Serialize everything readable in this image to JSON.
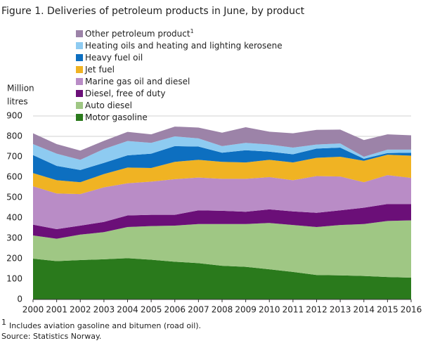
{
  "chart_data": {
    "type": "stacked_area",
    "title": "Figure 1. Deliveries of petroleum products in June, by product",
    "y_label": [
      "Million",
      "litres"
    ],
    "categories": [
      "2000",
      "2001",
      "2002",
      "2003",
      "2004",
      "2005",
      "2006",
      "2007",
      "2008",
      "2009",
      "2010",
      "2011",
      "2012",
      "2013",
      "2014",
      "2015",
      "2016"
    ],
    "series": [
      {
        "name": "Motor gasoline",
        "color": "#2a7a1c",
        "values": [
          200,
          188,
          193,
          197,
          202,
          195,
          185,
          178,
          165,
          160,
          148,
          135,
          120,
          118,
          115,
          110,
          107
        ]
      },
      {
        "name": "Auto diesel",
        "color": "#9fc784",
        "values": [
          114,
          110,
          125,
          133,
          153,
          165,
          177,
          192,
          205,
          210,
          227,
          230,
          235,
          247,
          255,
          275,
          281
        ]
      },
      {
        "name": "Diesel, free of duty",
        "color": "#6b0f78",
        "values": [
          53,
          47,
          44,
          50,
          57,
          55,
          53,
          67,
          65,
          60,
          67,
          67,
          70,
          72,
          80,
          83,
          80
        ]
      },
      {
        "name": "Marine gas oil and diesel",
        "color": "#b98cc6",
        "values": [
          188,
          175,
          155,
          170,
          158,
          163,
          175,
          161,
          157,
          162,
          158,
          153,
          180,
          166,
          125,
          142,
          128
        ]
      },
      {
        "name": "Jet fuel",
        "color": "#f0b323",
        "values": [
          65,
          65,
          58,
          65,
          77,
          67,
          85,
          87,
          83,
          80,
          85,
          87,
          90,
          97,
          105,
          100,
          109
        ]
      },
      {
        "name": "Heavy fuel oil",
        "color": "#0d6fc0",
        "values": [
          88,
          70,
          60,
          55,
          60,
          70,
          77,
          65,
          45,
          60,
          40,
          40,
          45,
          45,
          10,
          8,
          15
        ]
      },
      {
        "name": "Heating oils and heating and lighting kerosene",
        "color": "#8ecbf1",
        "values": [
          54,
          60,
          50,
          68,
          70,
          53,
          48,
          40,
          32,
          36,
          35,
          33,
          20,
          20,
          10,
          17,
          15
        ]
      },
      {
        "name": "Other petroleum product",
        "superscript": "1",
        "color": "#9c83a8",
        "values": [
          53,
          47,
          45,
          40,
          45,
          42,
          48,
          53,
          66,
          77,
          63,
          70,
          72,
          68,
          82,
          75,
          70
        ]
      }
    ],
    "ylim": [
      0,
      900
    ],
    "yticks": [
      0,
      100,
      200,
      300,
      400,
      500,
      600,
      700,
      800,
      900
    ],
    "grid": true,
    "footnote_marker": "1",
    "footnote": "Includes aviation gasoline and bitumen (road oil).",
    "source": "Source: Statistics Norway."
  }
}
